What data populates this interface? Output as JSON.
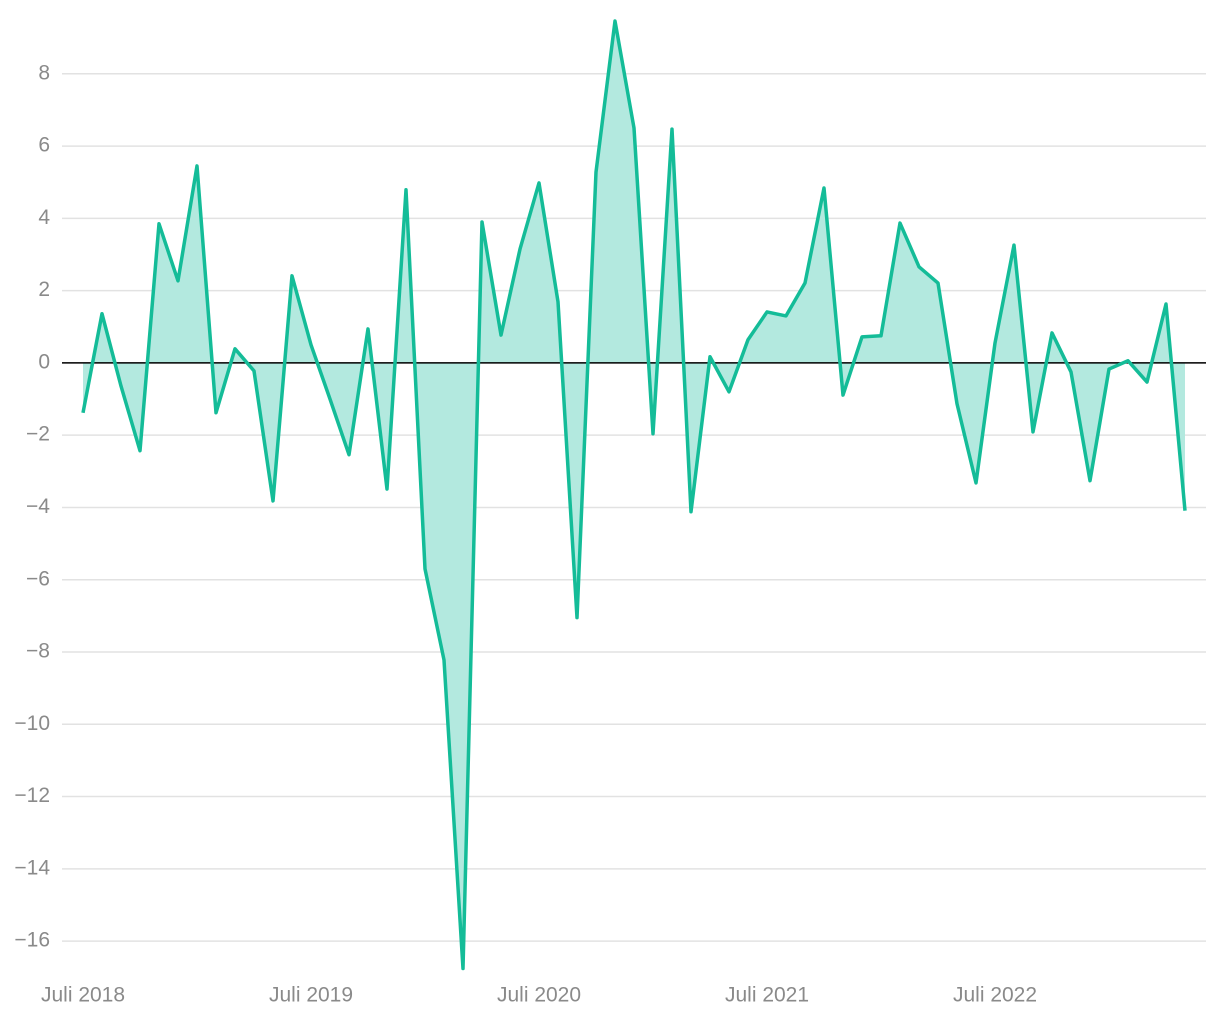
{
  "chart_data": {
    "type": "area",
    "categories": [
      "Juli 2018",
      null,
      null,
      null,
      null,
      null,
      null,
      null,
      null,
      null,
      null,
      null,
      "Juli 2019",
      null,
      null,
      null,
      null,
      null,
      null,
      null,
      null,
      null,
      null,
      null,
      "Juli 2020",
      null,
      null,
      null,
      null,
      null,
      null,
      null,
      null,
      null,
      null,
      null,
      "Juli 2021",
      null,
      null,
      null,
      null,
      null,
      null,
      null,
      null,
      null,
      null,
      null,
      "Juli 2022",
      null,
      null,
      null,
      null,
      null,
      null,
      null,
      null,
      null,
      null
    ],
    "series": [
      {
        "color": "#14bc98",
        "values": [
          -1.38,
          1.36,
          -0.64,
          -2.43,
          3.85,
          2.27,
          5.45,
          -1.38,
          0.39,
          -0.22,
          -3.82,
          2.41,
          0.5,
          -1.0,
          -2.54,
          0.94,
          -3.49,
          4.79,
          -5.7,
          -8.22,
          -16.76,
          3.9,
          0.77,
          3.15,
          4.98,
          1.69,
          -7.05,
          5.28,
          9.46,
          6.5,
          -1.96,
          6.47,
          -4.12,
          0.17,
          -0.8,
          0.64,
          1.41,
          1.3,
          2.21,
          4.84,
          -0.89,
          0.72,
          0.75,
          3.87,
          2.66,
          2.21,
          -1.13,
          -3.32,
          0.55,
          3.26,
          -1.91,
          0.83,
          -0.25,
          -3.26,
          -0.17,
          0.06,
          -0.53,
          1.63,
          -4.09
        ]
      }
    ],
    "fill_color": "#b3e9df",
    "ylim": [
      -16.8,
      9.5
    ],
    "yticks": [
      {
        "value": -16,
        "label": "−16"
      },
      {
        "value": -14,
        "label": "−14"
      },
      {
        "value": -12,
        "label": "−12"
      },
      {
        "value": -10,
        "label": "−10"
      },
      {
        "value": -8,
        "label": "−8"
      },
      {
        "value": -6,
        "label": "−6"
      },
      {
        "value": -4,
        "label": "−4"
      },
      {
        "value": -2,
        "label": "−2"
      },
      0,
      2,
      4,
      6,
      8
    ],
    "grid": true
  }
}
